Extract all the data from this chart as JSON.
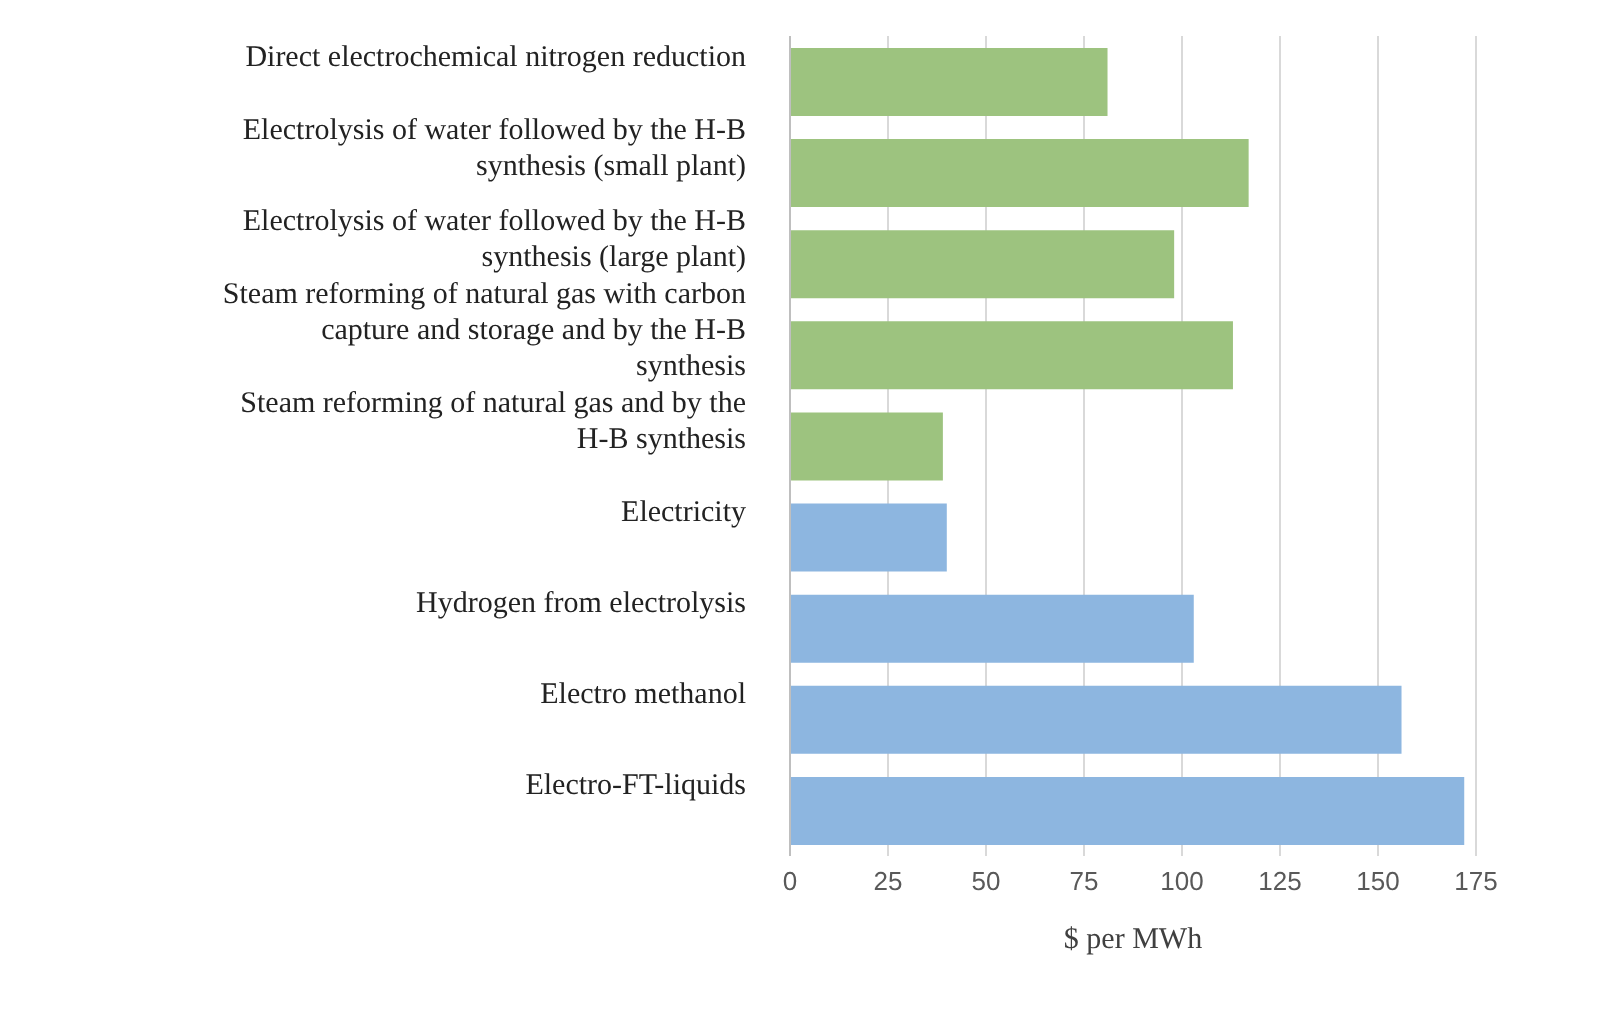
{
  "chart_data": {
    "type": "bar",
    "orientation": "horizontal",
    "xlabel": "$ per MWh",
    "categories": [
      "Direct electrochemical nitrogen reduction",
      "Electrolysis of water followed by the H-B synthesis (small plant)",
      "Electrolysis of water followed by the H-B synthesis (large plant)",
      "Steam reforming of natural gas with carbon capture and storage and by the H-B synthesis",
      "Steam reforming of natural gas and by the H-B synthesis",
      "Electricity",
      "Hydrogen from electrolysis",
      "Electro methanol",
      "Electro-FT-liquids"
    ],
    "values": [
      81,
      117,
      98,
      113,
      39,
      40,
      103,
      156,
      172
    ],
    "colors": [
      "#9dc37f",
      "#9dc37f",
      "#9dc37f",
      "#9dc37f",
      "#9dc37f",
      "#8db6e0",
      "#8db6e0",
      "#8db6e0",
      "#8db6e0"
    ],
    "xlim": [
      0,
      175
    ],
    "xticks": [
      0,
      25,
      50,
      75,
      100,
      125,
      150,
      175
    ],
    "grid": "x"
  }
}
